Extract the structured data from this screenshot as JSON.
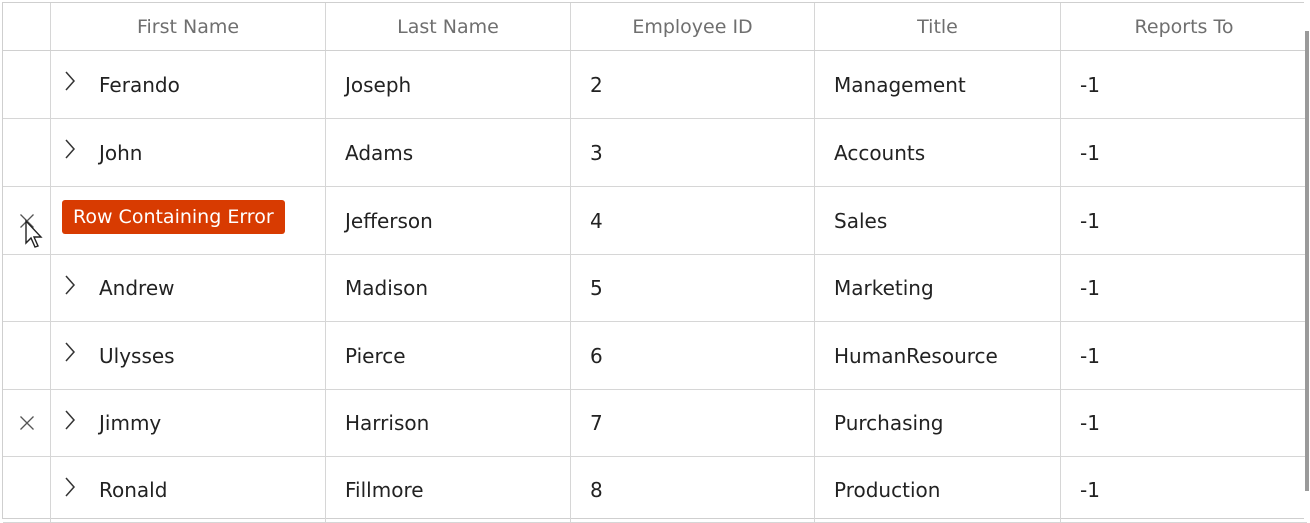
{
  "columns": [
    {
      "label": ""
    },
    {
      "label": "First Name"
    },
    {
      "label": "Last Name"
    },
    {
      "label": "Employee ID"
    },
    {
      "label": "Title"
    },
    {
      "label": "Reports To"
    }
  ],
  "error_label": "Row Containing Error",
  "colors": {
    "error": "#d83b01",
    "gridline": "#d6d6d6",
    "header_text": "#6f6f6f"
  },
  "rows": [
    {
      "first": "Ferando",
      "last": "Joseph",
      "id": "2",
      "title": "Management",
      "reports_to": "-1",
      "error": false
    },
    {
      "first": "John",
      "last": "Adams",
      "id": "3",
      "title": "Accounts",
      "reports_to": "-1",
      "error": false
    },
    {
      "first": "",
      "last": "Jefferson",
      "id": "4",
      "title": "Sales",
      "reports_to": "-1",
      "error": true
    },
    {
      "first": "Andrew",
      "last": "Madison",
      "id": "5",
      "title": "Marketing",
      "reports_to": "-1",
      "error": false
    },
    {
      "first": "Ulysses",
      "last": "Pierce",
      "id": "6",
      "title": "HumanResource",
      "reports_to": "-1",
      "error": false
    },
    {
      "first": "Jimmy",
      "last": "Harrison",
      "id": "7",
      "title": "Purchasing",
      "reports_to": "-1",
      "error": true
    },
    {
      "first": "Ronald",
      "last": "Fillmore",
      "id": "8",
      "title": "Production",
      "reports_to": "-1",
      "error": false
    }
  ]
}
